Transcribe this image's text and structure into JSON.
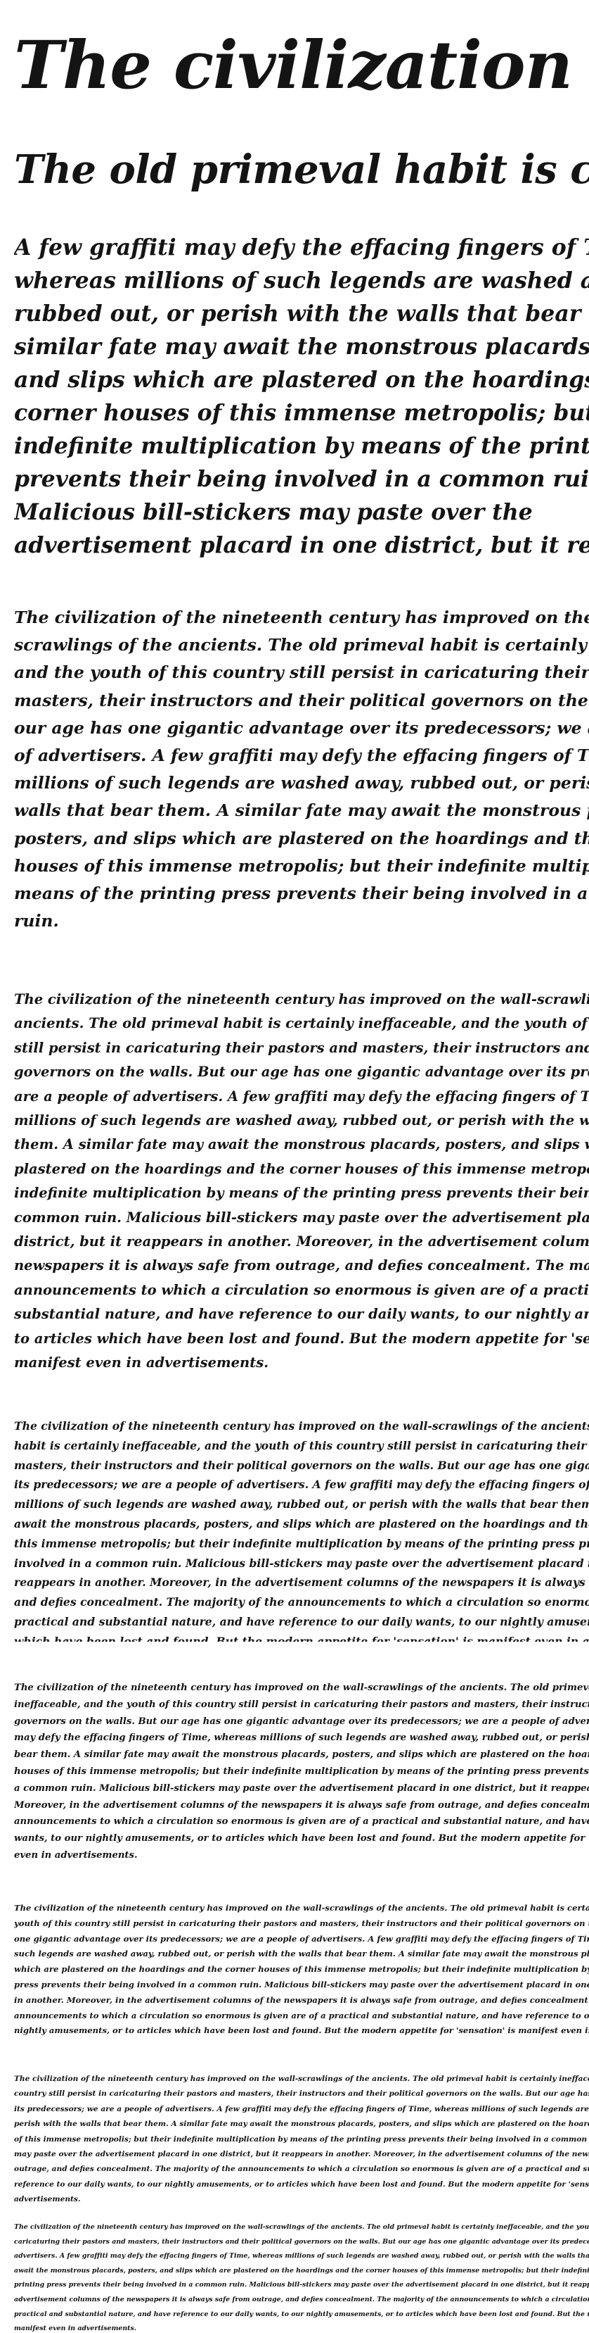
{
  "specimens": {
    "line_1": "The civilization of the nineteenth century",
    "line_2": "The old primeval habit is certainly ineffaceable",
    "para_3": "A few graffiti may defy the effacing fingers of Time, whereas millions of such legends are washed away, rubbed out, or perish with the walls that bear them. A similar fate may await the monstrous placards, posters, and slips which are plastered on the hoardings and the corner houses of this immense metropolis; but their indefinite multiplication by means of the printing press prevents their being involved in a common ruin. Malicious bill-stickers may paste over the advertisement placard in one district, but it reappears in another.",
    "para_4": "The civilization of the nineteenth century has improved on the wall-scrawlings of the ancients. The old primeval habit is certainly ineffaceable, and the youth of this country still persist in caricaturing their pastors and masters, their instructors and their political governors on the walls. But our age has one gigantic advantage over its predecessors; we are a people of advertisers. A few graffiti may defy the effacing fingers of Time, whereas millions of such legends are washed away, rubbed out, or perish with the walls that bear them. A similar fate may await the monstrous placards, posters, and slips which are plastered on the hoardings and the corner houses of this immense metropolis; but their indefinite multiplication by means of the printing press prevents their being involved in a common ruin.",
    "para_5": "The civilization of the nineteenth century has improved on the wall-scrawlings of the ancients. The old primeval habit is certainly ineffaceable, and the youth of this country still persist in caricaturing their pastors and masters, their instructors and their political governors on the walls. But our age has one gigantic advantage over its predecessors; we are a people of advertisers. A few graffiti may defy the effacing fingers of Time, whereas millions of such legends are washed away, rubbed out, or perish with the walls that bear them. A similar fate may await the monstrous placards, posters, and slips which are plastered on the hoardings and the corner houses of this immense metropolis; but their indefinite multiplication by means of the printing press prevents their being involved in a common ruin. Malicious bill-stickers may paste over the advertisement placard in one district, but it reappears in another. Moreover, in the advertisement columns of the newspapers it is always safe from outrage, and defies concealment. The majority of the announcements to which a circulation so enormous is given are of a practical and substantial nature, and have reference to our daily wants, to our nightly amusements, or to articles which have been lost and found. But the modern appetite for 'sensation' is manifest even in advertisements.",
    "para_6": "The civilization of the nineteenth century has improved on the wall-scrawlings of the ancients. The old primeval habit is certainly ineffaceable, and the youth of this country still persist in caricaturing their pastors and masters, their instructors and their political governors on the walls. But our age has one gigantic advantage over its predecessors; we are a people of advertisers. A few graffiti may defy the effacing fingers of Time, whereas millions of such legends are washed away, rubbed out, or perish with the walls that bear them. A similar fate may await the monstrous placards, posters, and slips which are plastered on the hoardings and the corner houses of this immense metropolis; but their indefinite multiplication by means of the printing press prevents their being involved in a common ruin. Malicious bill-stickers may paste over the advertisement placard in one district, but it reappears in another. Moreover, in the advertisement columns of the newspapers it is always safe from outrage, and defies concealment. The majority of the announcements to which a circulation so enormous is given are of a practical and substantial nature, and have reference to our daily wants, to our nightly amusements, or to articles which have been lost and found. But the modern appetite for 'sensation' is manifest even in advertisements.",
    "para_7": "The civilization of the nineteenth century has improved on the wall-scrawlings of the ancients. The old primeval habit is certainly ineffaceable, and the youth of this country still persist in caricaturing their pastors and masters, their instructors and their political governors on the walls. But our age has one gigantic advantage over its predecessors; we are a people of advertisers. A few graffiti may defy the effacing fingers of Time, whereas millions of such legends are washed away, rubbed out, or perish with the walls that bear them. A similar fate may await the monstrous placards, posters, and slips which are plastered on the hoardings and the corner houses of this immense metropolis; but their indefinite multiplication by means of the printing press prevents their being involved in a common ruin. Malicious bill-stickers may paste over the advertisement placard in one district, but it reappears in another. Moreover, in the advertisement columns of the newspapers it is always safe from outrage, and defies concealment. The majority of the announcements to which a circulation so enormous is given are of a practical and substantial nature, and have reference to our daily wants, to our nightly amusements, or to articles which have been lost and found. But the modern appetite for 'sensation' is manifest even in advertisements.",
    "para_8": "The civilization of the nineteenth century has improved on the wall-scrawlings of the ancients. The old primeval habit is certainly ineffaceable, and the youth of this country still persist in caricaturing their pastors and masters, their instructors and their political governors on the walls. But our age has one gigantic advantage over its predecessors; we are a people of advertisers. A few graffiti may defy the effacing fingers of Time, whereas millions of such legends are washed away, rubbed out, or perish with the walls that bear them. A similar fate may await the monstrous placards, posters, and slips which are plastered on the hoardings and the corner houses of this immense metropolis; but their indefinite multiplication by means of the printing press prevents their being involved in a common ruin. Malicious bill-stickers may paste over the advertisement placard in one district, but it reappears in another. Moreover, in the advertisement columns of the newspapers it is always safe from outrage, and defies concealment. The majority of the announcements to which a circulation so enormous is given are of a practical and substantial nature, and have reference to our daily wants, to our nightly amusements, or to articles which have been lost and found. But the modern appetite for 'sensation' is manifest even in advertisements.",
    "para_9": "The civilization of the nineteenth century has improved on the wall-scrawlings of the ancients. The old primeval habit is certainly ineffaceable, and the youth of this country still persist in caricaturing their pastors and masters, their instructors and their political governors on the walls. But our age has one gigantic advantage over its predecessors; we are a people of advertisers. A few graffiti may defy the effacing fingers of Time, whereas millions of such legends are washed away, rubbed out, or perish with the walls that bear them. A similar fate may await the monstrous placards, posters, and slips which are plastered on the hoardings and the corner houses of this immense metropolis; but their indefinite multiplication by means of the printing press prevents their being involved in a common ruin. Malicious bill-stickers may paste over the advertisement placard in one district, but it reappears in another. Moreover, in the advertisement columns of the newspapers it is always safe from outrage, and defies concealment. The majority of the announcements to which a circulation so enormous is given are of a practical and substantial nature, and have reference to our daily wants, to our nightly amusements, or to articles which have been lost and found. But the modern appetite for 'sensation' is manifest even in advertisements.",
    "para_10": "The civilization of the nineteenth century has improved on the wall-scrawlings of the ancients. The old primeval habit is certainly ineffaceable, and the youth of this country still persist in caricaturing their pastors and masters, their instructors and their political governors on the walls. But our age has one gigantic advantage over its predecessors; we are a people of advertisers. A few graffiti may defy the effacing fingers of Time, whereas millions of such legends are washed away, rubbed out, or perish with the walls that bear them. A similar fate may await the monstrous placards, posters, and slips which are plastered on the hoardings and the corner houses of this immense metropolis; but their indefinite multiplication by means of the printing press prevents their being involved in a common ruin. Malicious bill-stickers may paste over the advertisement placard in one district, but it reappears in another. Moreover, in the advertisement columns of the newspapers it is always safe from outrage, and defies concealment. The majority of the announcements to which a circulation so enormous is given are of a practical and substantial nature, and have reference to our daily wants, to our nightly amusements, or to articles which have been lost and found. But the modern appetite for 'sensation' is manifest even in advertisements."
  }
}
